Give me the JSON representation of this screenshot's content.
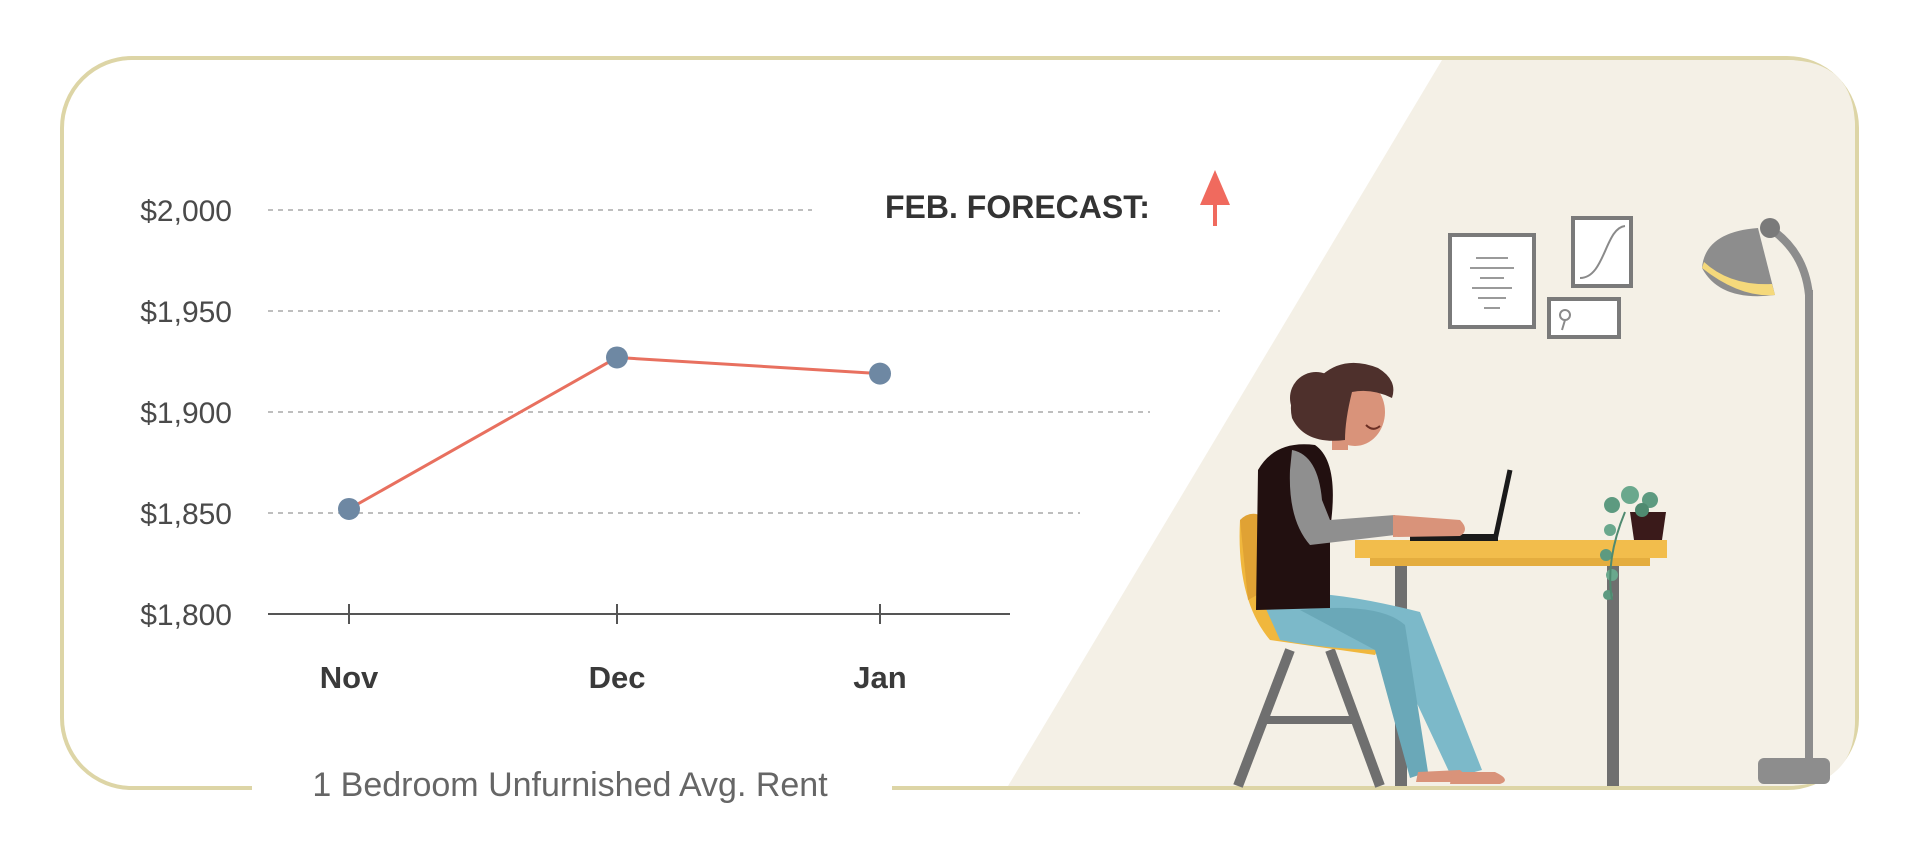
{
  "chart_data": {
    "type": "line",
    "categories": [
      "Nov",
      "Dec",
      "Jan"
    ],
    "series": [
      {
        "values": [
          1852,
          1927,
          1919
        ]
      }
    ],
    "y_ticks": [
      "$2,000",
      "$1,950",
      "$1,900",
      "$1,850",
      "$1,800"
    ],
    "ylim": [
      1800,
      2000
    ],
    "xlabel": "1 Bedroom Unfurnished Avg. Rent",
    "grid": true,
    "forecast": {
      "label": "FEB. FORECAST:",
      "direction": "up",
      "icon": "arrow-up-icon"
    }
  },
  "colors": {
    "frame": "#ddd5a6",
    "line": "#e8705f",
    "point": "#6e88a3",
    "grid": "#a8a8a8",
    "axis": "#555555",
    "arrow": "#f06a5e",
    "illustration_bg": "#f4f0e6",
    "desk": "#f2bd4c",
    "chair": "#f0b73d",
    "hair": "#4e302c",
    "pants": "#7cb9c9",
    "lamp": "#8d8d8d",
    "lamp_light": "#f5d97b"
  }
}
